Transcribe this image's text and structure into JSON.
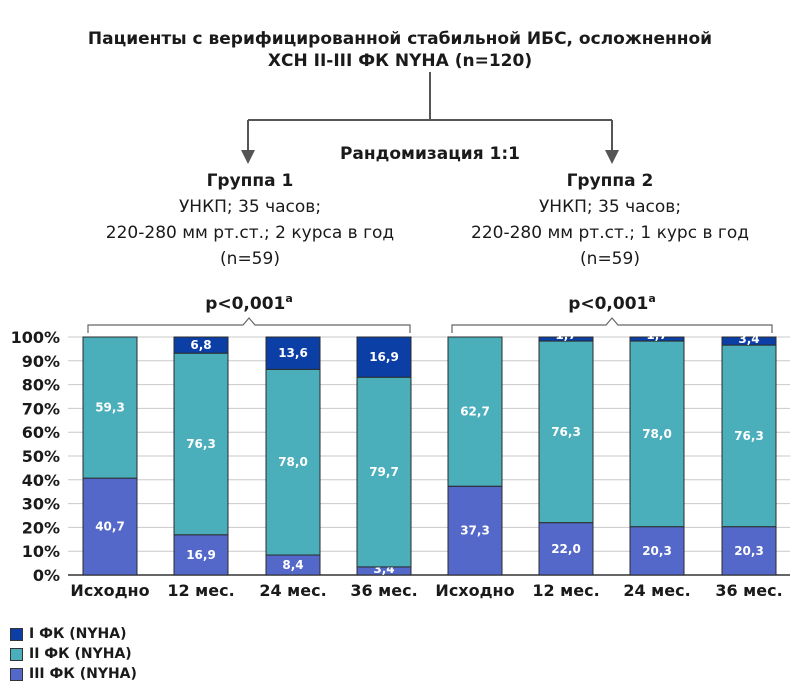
{
  "header": {
    "line1": "Пациенты с верифицированной стабильной ИБС,  осложненной",
    "line2": "ХСН II-III ФК NYHA (n=120)",
    "randomization": "Рандомизация 1:1"
  },
  "groups": [
    {
      "title": "Группа 1",
      "line1": "УНКП; 35 часов;",
      "line2": "220-280 мм рт.ст.; 2 курса в год",
      "line3": "(n=59)",
      "pvalue": "p<0,001",
      "psup": "a"
    },
    {
      "title": "Группа 2",
      "line1": "УНКП; 35 часов;",
      "line2": "220-280 мм рт.ст.; 1 курс в год",
      "line3": "(n=59)",
      "pvalue": "p<0,001",
      "psup": "a"
    }
  ],
  "colors": {
    "fk1": "#0b3fa6",
    "fk2": "#4aaebb",
    "fk3": "#5468c9"
  },
  "chart_data": {
    "type": "bar",
    "stacked": true,
    "ylim": [
      0,
      100
    ],
    "yticks": [
      "0%",
      "10%",
      "20%",
      "30%",
      "40%",
      "50%",
      "60%",
      "70%",
      "80%",
      "90%",
      "100%"
    ],
    "categories": [
      "Исходно",
      "12 мес.",
      "24 мес.",
      "36 мес.",
      "Исходно",
      "12 мес.",
      "24 мес.",
      "36 мес."
    ],
    "series": [
      {
        "name": "III ФК (NYHA)",
        "color": "#5468c9",
        "values": [
          40.7,
          16.9,
          8.4,
          3.4,
          37.3,
          22.0,
          20.3,
          20.3
        ],
        "labels": [
          "40,7",
          "16,9",
          "8,4",
          "3,4",
          "37,3",
          "22,0",
          "20,3",
          "20,3"
        ]
      },
      {
        "name": "II ФК (NYHA)",
        "color": "#4aaebb",
        "values": [
          59.3,
          76.3,
          78.0,
          79.7,
          62.7,
          76.3,
          78.0,
          76.3
        ],
        "labels": [
          "59,3",
          "76,3",
          "78,0",
          "79,7",
          "62,7",
          "76,3",
          "78,0",
          "76,3"
        ]
      },
      {
        "name": "I ФК (NYHA)",
        "color": "#0b3fa6",
        "values": [
          0,
          6.8,
          13.6,
          16.9,
          0,
          1.7,
          1.7,
          3.4
        ],
        "labels": [
          "",
          "6,8",
          "13,6",
          "16,9",
          "",
          "1,7",
          "1,7",
          "3,4"
        ]
      }
    ],
    "legend": [
      {
        "name": "I ФК (NYHA)",
        "color": "#0b3fa6"
      },
      {
        "name": "II ФК (NYHA)",
        "color": "#4aaebb"
      },
      {
        "name": "III ФК (NYHA)",
        "color": "#5468c9"
      }
    ],
    "legend_position": "bottom-left"
  }
}
